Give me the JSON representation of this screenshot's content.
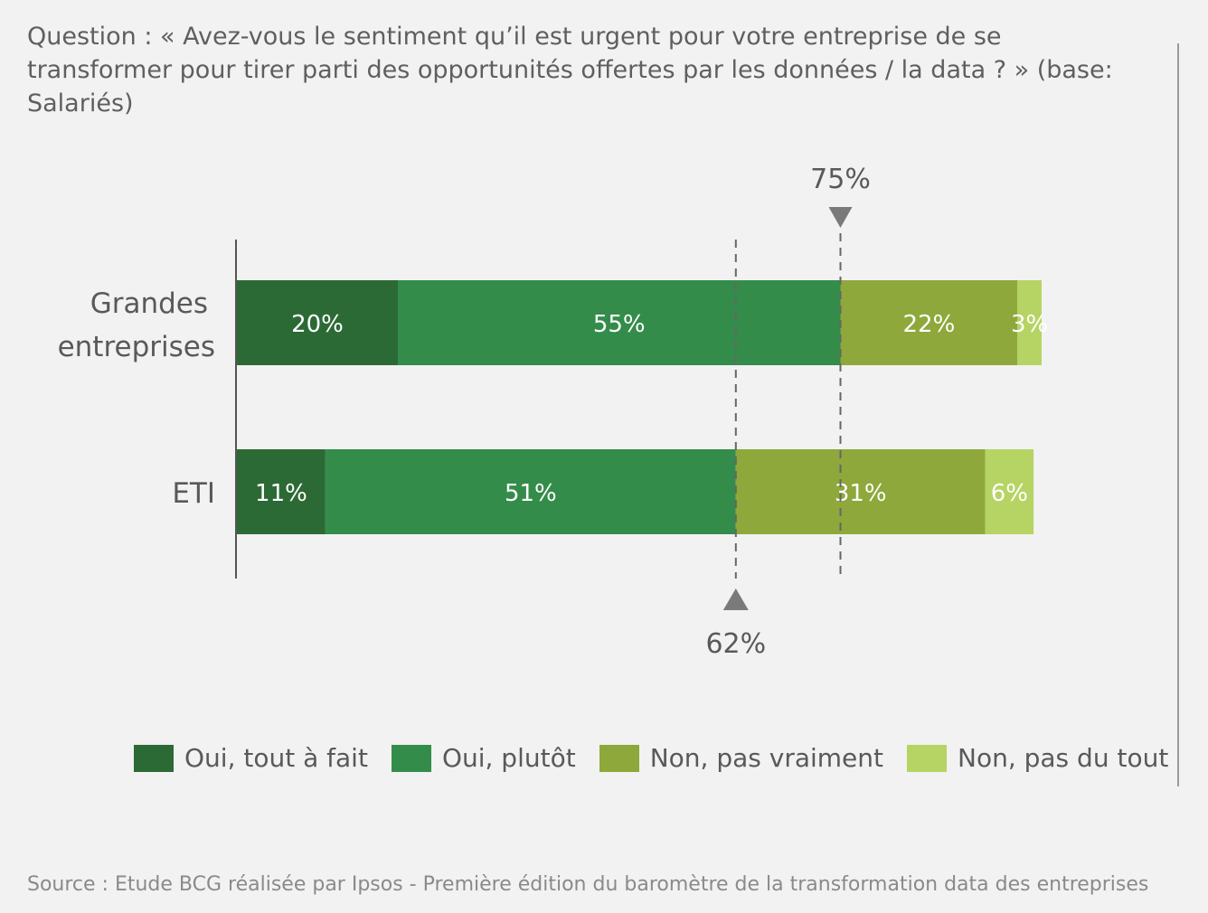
{
  "question": "Question : « Avez-vous le sentiment qu’il est urgent pour votre entreprise de se transformer pour tirer parti des opportunités offertes par les données / la data ? » (base: Salariés)",
  "source": "Source : Etude BCG réalisée par Ipsos - Première édition du baromètre de la transformation data des entreprises",
  "chart_data": {
    "type": "bar",
    "orientation": "horizontal",
    "stacked": true,
    "categories": [
      "Grandes entreprises",
      "ETI"
    ],
    "series": [
      {
        "name": "Oui, tout à fait",
        "values": [
          20,
          11
        ],
        "labels": [
          "20%",
          "11%"
        ],
        "color": "#2c6a35"
      },
      {
        "name": "Oui, plutôt",
        "values": [
          55,
          51
        ],
        "labels": [
          "55%",
          "51%"
        ],
        "color": "#348c4a"
      },
      {
        "name": "Non, pas vraiment",
        "values": [
          22,
          31
        ],
        "labels": [
          "22%",
          "31%"
        ],
        "color": "#8ea83b"
      },
      {
        "name": "Non, pas du tout",
        "values": [
          3,
          6
        ],
        "labels": [
          "3%",
          "6%"
        ],
        "color": "#b6d463"
      }
    ],
    "xlim": [
      0,
      100
    ],
    "annotations": [
      {
        "label": "75%",
        "value": 75,
        "category": "Grandes entreprises",
        "marker": "triangle-down",
        "position": "top"
      },
      {
        "label": "62%",
        "value": 62,
        "category": "ETI",
        "marker": "triangle-up",
        "position": "bottom"
      }
    ],
    "legend": "bottom",
    "grid": false
  }
}
